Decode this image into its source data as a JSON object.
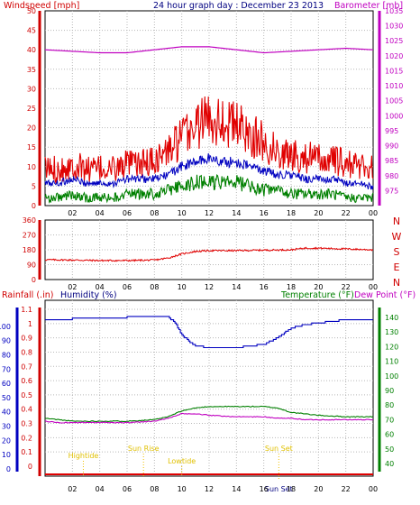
{
  "chart_data": [
    {
      "type": "line",
      "title": "24 hour graph day : December 23 2013",
      "left_axis_label": "Windspeed [mph]",
      "right_axis_label": "Barometer [mb]",
      "x_ticks": [
        "02",
        "04",
        "06",
        "08",
        "10",
        "12",
        "14",
        "16",
        "18",
        "20",
        "22",
        "00"
      ],
      "x_range_hours": [
        0,
        24
      ],
      "ylim_left": [
        0,
        50
      ],
      "ylim_right": [
        970,
        1035
      ],
      "y_ticks_left": [
        0,
        5,
        10,
        15,
        20,
        25,
        30,
        35,
        40,
        45,
        50
      ],
      "y_ticks_right": [
        975,
        980,
        985,
        990,
        995,
        1000,
        1005,
        1010,
        1015,
        1020,
        1025,
        1030,
        1035
      ],
      "grid": true,
      "series": [
        {
          "color": "#e00000",
          "axis": "left",
          "x": [
            0,
            1,
            2,
            3,
            4,
            5,
            6,
            7,
            8,
            9,
            10,
            11,
            12,
            13,
            14,
            15,
            16,
            17,
            18,
            19,
            20,
            21,
            22,
            23,
            24
          ],
          "y": [
            8,
            8,
            9,
            8,
            8,
            8,
            9,
            9,
            10,
            12,
            15,
            18,
            20,
            19,
            18,
            16,
            14,
            12,
            11,
            11,
            10,
            10,
            9,
            9,
            8
          ]
        },
        {
          "color": "#0000c0",
          "axis": "left",
          "x": [
            0,
            1,
            2,
            3,
            4,
            5,
            6,
            7,
            8,
            9,
            10,
            11,
            12,
            13,
            14,
            15,
            16,
            17,
            18,
            19,
            20,
            21,
            22,
            23,
            24
          ],
          "y": [
            5,
            5,
            6,
            5,
            5,
            5,
            6,
            6,
            6,
            7,
            9,
            10,
            11,
            10,
            10,
            9,
            8,
            7,
            7,
            6,
            6,
            6,
            5,
            5,
            4
          ]
        },
        {
          "color": "#008000",
          "axis": "left",
          "x": [
            0,
            1,
            2,
            3,
            4,
            5,
            6,
            7,
            8,
            9,
            10,
            11,
            12,
            13,
            14,
            15,
            16,
            17,
            18,
            19,
            20,
            21,
            22,
            23,
            24
          ],
          "y": [
            2,
            2,
            3,
            2,
            2,
            2,
            3,
            3,
            3,
            4,
            5,
            6,
            6,
            6,
            6,
            5,
            4,
            4,
            3,
            3,
            3,
            3,
            2,
            2,
            2
          ]
        },
        {
          "color": "#c000c0",
          "axis": "right",
          "x": [
            0,
            2,
            4,
            6,
            8,
            10,
            12,
            14,
            16,
            18,
            20,
            22,
            24
          ],
          "y": [
            1022,
            1021.5,
            1021,
            1021,
            1022,
            1023,
            1023,
            1022,
            1021,
            1021.5,
            1022,
            1022.5,
            1022
          ]
        }
      ]
    },
    {
      "type": "line",
      "right_labels": [
        "N",
        "W",
        "S",
        "E",
        "N"
      ],
      "x_ticks": [
        "02",
        "04",
        "06",
        "08",
        "10",
        "12",
        "14",
        "16",
        "18",
        "20",
        "22",
        "00"
      ],
      "ylim": [
        0,
        360
      ],
      "y_ticks": [
        0,
        90,
        180,
        270,
        360
      ],
      "grid": true,
      "series": [
        {
          "color": "#e00000",
          "x": [
            0,
            2,
            4,
            6,
            8,
            9,
            10,
            11,
            12,
            14,
            16,
            18,
            19,
            20,
            22,
            24
          ],
          "y": [
            120,
            118,
            115,
            115,
            118,
            130,
            155,
            170,
            175,
            175,
            178,
            180,
            190,
            190,
            185,
            180
          ]
        }
      ]
    },
    {
      "type": "line",
      "labels": {
        "rainfall": "Rainfall (.in)",
        "humidity": "Humidity (%)",
        "temperature": "Temperature (°F)",
        "dew_point": "Dew Point (°F)"
      },
      "x_ticks": [
        "02",
        "04",
        "06",
        "08",
        "10",
        "12",
        "14",
        "16",
        "18",
        "20",
        "22",
        "00"
      ],
      "x_range_hours": [
        0,
        24
      ],
      "ylim_left": [
        0,
        1
      ],
      "ylim_right": [
        30,
        150
      ],
      "y_ticks_left": [
        "0",
        "0.1",
        "0.2",
        "0.3",
        "0.4",
        "0.5",
        "0.6",
        "0.7",
        "0.8",
        "0.9",
        "1",
        "1.1"
      ],
      "y_ticks_left_humidity": [
        "0",
        "10",
        "20",
        "30",
        "40",
        "50",
        "60",
        "70",
        "80",
        "90",
        "100"
      ],
      "y_ticks_right": [
        40,
        50,
        60,
        70,
        80,
        90,
        100,
        110,
        120,
        130,
        140
      ],
      "grid": true,
      "annotations": [
        {
          "text": "Hightide",
          "hour": 2.8
        },
        {
          "text": "Sun Rise",
          "hour": 7.2
        },
        {
          "text": "Lowtide",
          "hour": 10.0
        },
        {
          "text": "Sun Set",
          "hour": 17.1
        },
        {
          "text": "Sun Set",
          "hour": 17.1
        }
      ],
      "series": [
        {
          "color": "#0000c0",
          "axis": "humidity",
          "x": [
            0,
            1,
            3,
            5,
            7,
            8,
            9,
            9.5,
            10,
            10.5,
            11,
            12,
            13,
            14,
            15,
            16,
            17,
            17.5,
            18,
            19,
            20,
            21,
            22,
            24
          ],
          "y": [
            92,
            92,
            93,
            93,
            94,
            94,
            94,
            90,
            83,
            79,
            76,
            75,
            75,
            75,
            76,
            77,
            81,
            84,
            87,
            89,
            90,
            91,
            92,
            92
          ]
        },
        {
          "color": "#008000",
          "axis": "temp",
          "x": [
            0,
            1,
            2,
            4,
            6,
            8,
            9,
            10,
            11,
            12,
            14,
            16,
            17,
            18,
            19,
            20,
            22,
            24
          ],
          "y": [
            71,
            70,
            69,
            69,
            69,
            70,
            72,
            76,
            78,
            79,
            79,
            79,
            78,
            75,
            74,
            73,
            72,
            72
          ]
        },
        {
          "color": "#c000c0",
          "axis": "temp",
          "x": [
            0,
            1,
            2,
            4,
            6,
            8,
            9,
            10,
            11,
            12,
            14,
            16,
            17,
            18,
            19,
            20,
            22,
            24
          ],
          "y": [
            69,
            68,
            68,
            68,
            68,
            69,
            71,
            74,
            74,
            73,
            72,
            72,
            71,
            71,
            70,
            70,
            70,
            70
          ]
        },
        {
          "color": "#e00000",
          "axis": "rain",
          "x": [
            0,
            24
          ],
          "y": [
            0,
            0
          ]
        }
      ]
    }
  ]
}
